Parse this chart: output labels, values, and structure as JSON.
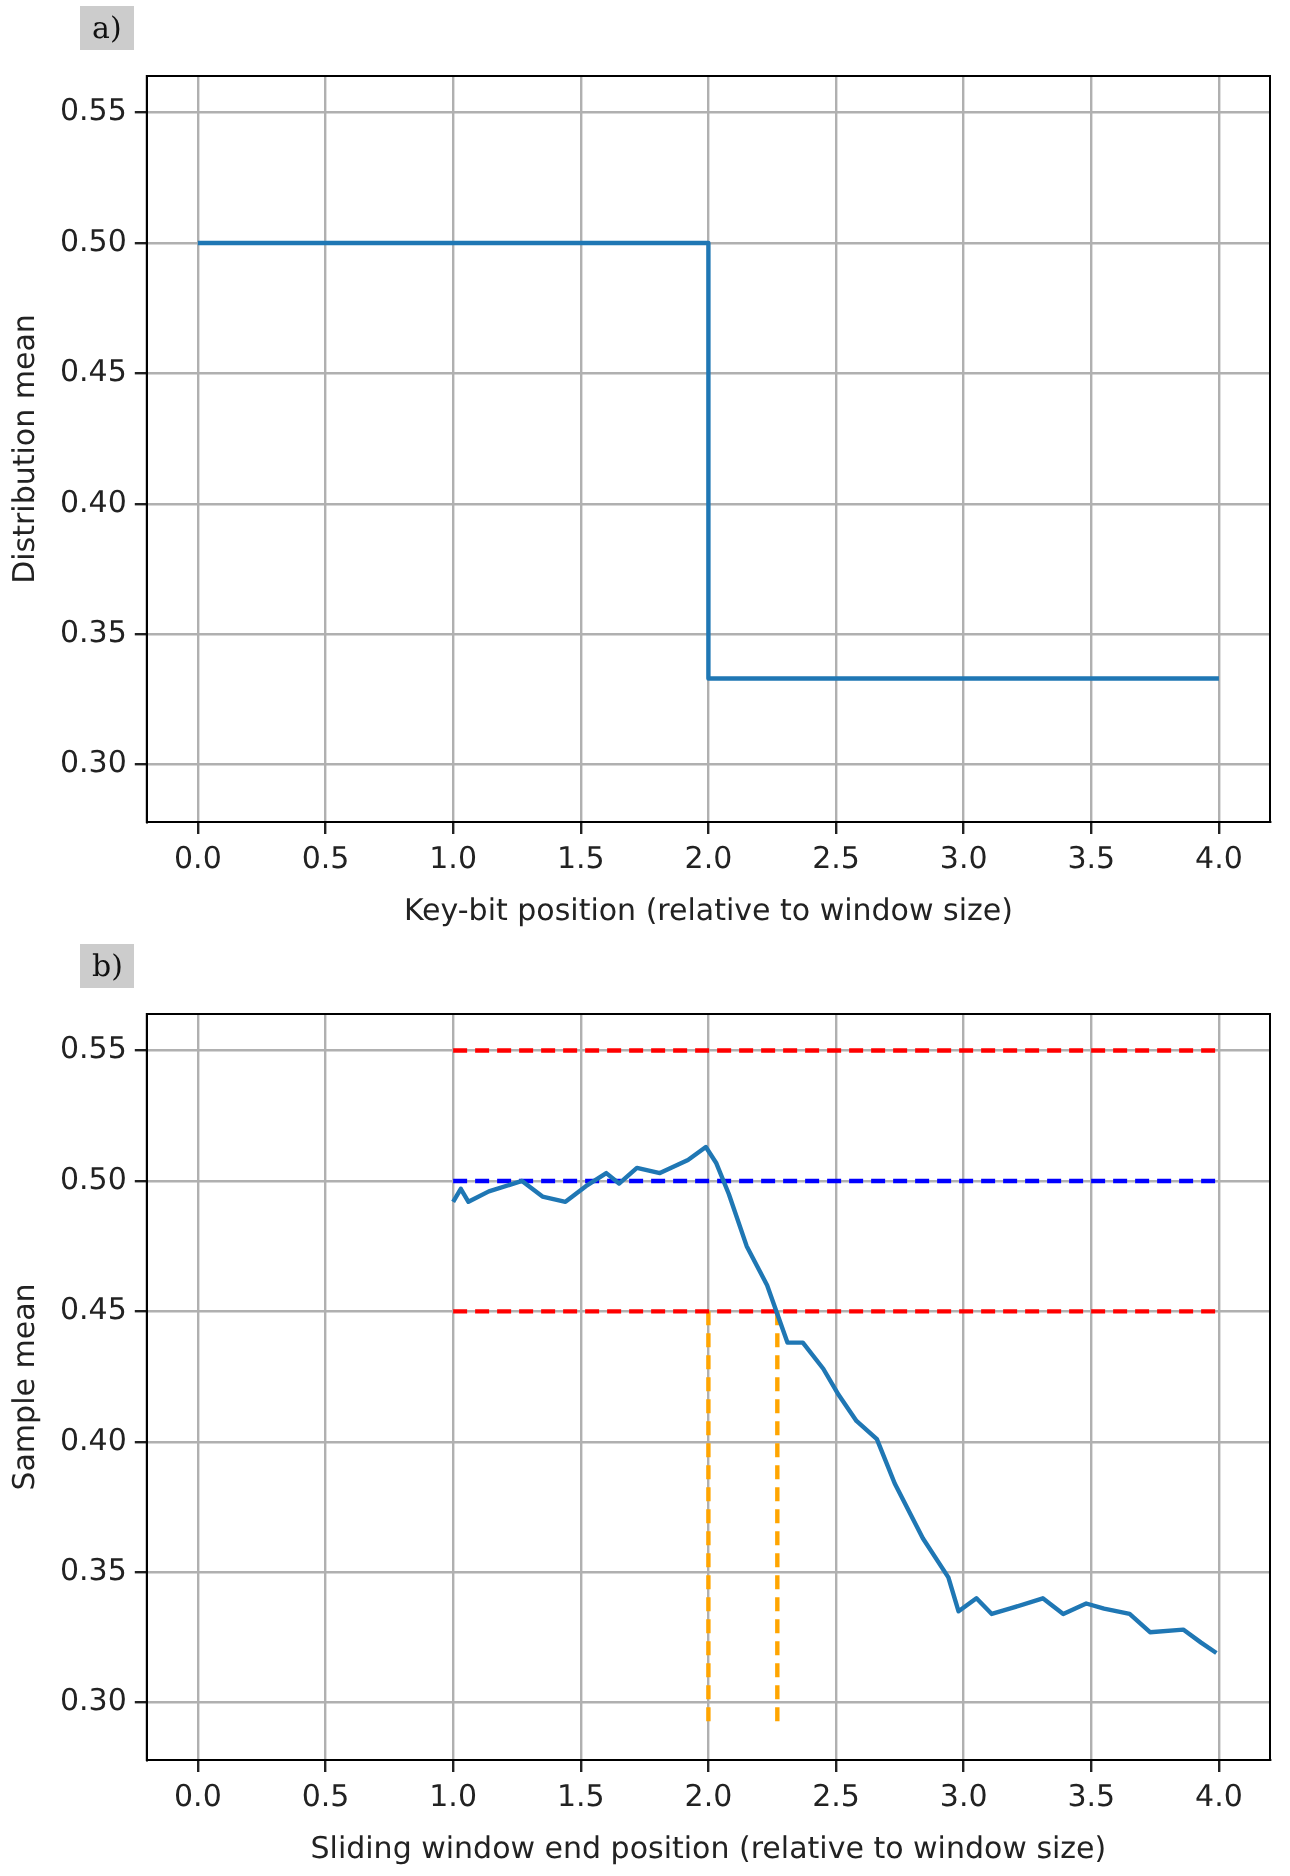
{
  "chart_data": [
    {
      "type": "step",
      "title": "a)",
      "xlabel": "Key-bit position (relative to window size)",
      "ylabel": "Distribution mean",
      "xlim": [
        -0.2,
        4.2
      ],
      "ylim": [
        0.278,
        0.564
      ],
      "xticks": [
        {
          "value": 0,
          "label": "0.0"
        },
        0.5,
        {
          "value": 1,
          "label": "1.0"
        },
        1.5,
        {
          "value": 2,
          "label": "2.0"
        },
        2.5,
        {
          "value": 3,
          "label": "3.0"
        },
        3.5,
        {
          "value": 4,
          "label": "4.0"
        }
      ],
      "yticks": [
        {
          "value": 0.3,
          "label": "0.30"
        },
        0.35,
        {
          "value": 0.4,
          "label": "0.40"
        },
        0.45,
        {
          "value": 0.5,
          "label": "0.50"
        },
        0.55
      ],
      "grid": true,
      "legend": false,
      "series": [
        {
          "color": "#1f77b4",
          "x": [
            0,
            2,
            4
          ],
          "values": [
            0.5,
            0.333,
            0.333
          ]
        }
      ]
    },
    {
      "type": "line",
      "title": "b)",
      "xlabel": "Sliding window end position (relative to window size)",
      "ylabel": "Sample mean",
      "xlim": [
        -0.2,
        4.2
      ],
      "ylim": [
        0.278,
        0.564
      ],
      "xticks": [
        {
          "value": 0,
          "label": "0.0"
        },
        0.5,
        {
          "value": 1,
          "label": "1.0"
        },
        1.5,
        {
          "value": 2,
          "label": "2.0"
        },
        2.5,
        {
          "value": 3,
          "label": "3.0"
        },
        3.5,
        {
          "value": 4,
          "label": "4.0"
        }
      ],
      "yticks": [
        {
          "value": 0.3,
          "label": "0.30"
        },
        0.35,
        {
          "value": 0.4,
          "label": "0.40"
        },
        0.45,
        {
          "value": 0.5,
          "label": "0.50"
        },
        0.55
      ],
      "grid": true,
      "legend": false,
      "series": [
        {
          "color": "#1f77b4",
          "x": [
            1.0,
            1.03,
            1.06,
            1.14,
            1.27,
            1.35,
            1.44,
            1.52,
            1.6,
            1.65,
            1.72,
            1.81,
            1.92,
            1.99,
            2.03,
            2.08,
            2.15,
            2.23,
            2.27,
            2.31,
            2.37,
            2.45,
            2.51,
            2.58,
            2.66,
            2.73,
            2.84,
            2.94,
            2.98,
            3.05,
            3.11,
            3.18,
            3.31,
            3.39,
            3.48,
            3.55,
            3.65,
            3.73,
            3.86,
            3.93,
            3.99
          ],
          "values": [
            0.492,
            0.497,
            0.492,
            0.496,
            0.5,
            0.494,
            0.492,
            0.498,
            0.503,
            0.499,
            0.505,
            0.503,
            0.508,
            0.513,
            0.507,
            0.495,
            0.475,
            0.46,
            0.449,
            0.438,
            0.438,
            0.428,
            0.418,
            0.408,
            0.401,
            0.384,
            0.363,
            0.348,
            0.335,
            0.34,
            0.334,
            0.336,
            0.34,
            0.334,
            0.338,
            0.336,
            0.334,
            0.327,
            0.328,
            0.323,
            0.319
          ]
        },
        {
          "color": "#ff0000",
          "line_style": "dashed",
          "x": [
            1,
            4
          ],
          "values": [
            0.55,
            0.55
          ]
        },
        {
          "color": "#0000ff",
          "line_style": "dashed",
          "x": [
            1,
            4
          ],
          "values": [
            0.5,
            0.5
          ]
        },
        {
          "color": "#ff0000",
          "line_style": "dashed",
          "x": [
            1,
            4
          ],
          "values": [
            0.45,
            0.45
          ]
        },
        {
          "color": "#ffa500",
          "line_style": "dashed",
          "x": [
            2,
            2
          ],
          "values": [
            0.45,
            0.292
          ]
        },
        {
          "color": "#ffa500",
          "line_style": "dashed",
          "x": [
            2.27,
            2.27
          ],
          "values": [
            0.45,
            0.292
          ]
        }
      ]
    }
  ]
}
